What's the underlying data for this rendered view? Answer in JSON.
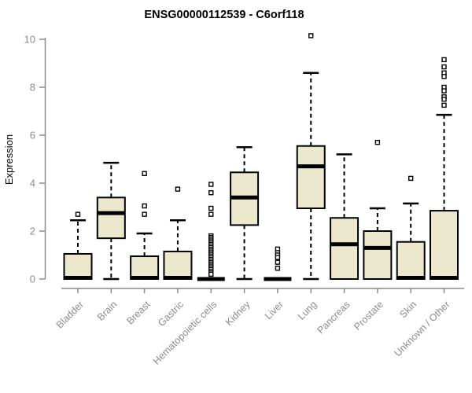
{
  "page": {
    "background": "#ffffff"
  },
  "colors": {
    "box_fill": "#ece8cd",
    "box_border": "#000000",
    "median": "#000000",
    "whisker": "#000000",
    "outlier_fill": "#ffffff",
    "outlier_border": "#000000",
    "axis": "#8c8c8c",
    "tick_text": "#8c8c8c",
    "title_text": "#000000"
  },
  "chart_data": {
    "type": "boxplot",
    "title": "ENSG00000112539 - C6orf118",
    "xlabel": "",
    "ylabel": "Expression",
    "ylim": [
      0,
      10
    ],
    "yticks": [
      0,
      2,
      4,
      6,
      8,
      10
    ],
    "grid": false,
    "legend": false,
    "categories": [
      "Bladder",
      "Brain",
      "Breast",
      "Gastric",
      "Hematopoietic cells",
      "Kidney",
      "Liver",
      "Lung",
      "Pancreas",
      "Prostate",
      "Skin",
      "Unknown / Other"
    ],
    "series": [
      {
        "name": "Bladder",
        "min": 0,
        "q1": 0,
        "median": 0.05,
        "q3": 1.05,
        "max": 2.45,
        "outliers": [
          2.7
        ]
      },
      {
        "name": "Brain",
        "min": 0,
        "q1": 1.7,
        "median": 2.75,
        "q3": 3.4,
        "max": 4.85,
        "outliers": []
      },
      {
        "name": "Breast",
        "min": 0,
        "q1": 0,
        "median": 0.05,
        "q3": 0.95,
        "max": 1.9,
        "outliers": [
          4.4,
          3.05,
          2.7
        ]
      },
      {
        "name": "Gastric",
        "min": 0,
        "q1": 0,
        "median": 0.05,
        "q3": 1.15,
        "max": 2.45,
        "outliers": [
          3.75
        ]
      },
      {
        "name": "Hematopoietic cells",
        "min": 0,
        "q1": 0,
        "median": 0,
        "q3": 0,
        "max": 0,
        "outliers": [
          3.95,
          3.6,
          2.95,
          2.7,
          1.8,
          1.73,
          1.66,
          1.59,
          1.52,
          1.45,
          1.38,
          1.31,
          1.24,
          1.17,
          1.1,
          1.03,
          0.96,
          0.89,
          0.82,
          0.75,
          0.68,
          0.61,
          0.54,
          0.47,
          0.4,
          0.33,
          0.26,
          0.2
        ]
      },
      {
        "name": "Kidney",
        "min": 0,
        "q1": 2.25,
        "median": 3.4,
        "q3": 4.45,
        "max": 5.5,
        "outliers": []
      },
      {
        "name": "Liver",
        "min": 0,
        "q1": 0,
        "median": 0,
        "q3": 0,
        "max": 0,
        "outliers": [
          1.25,
          1.1,
          1.0,
          0.9,
          0.7,
          0.45
        ]
      },
      {
        "name": "Lung",
        "min": 0,
        "q1": 2.95,
        "median": 4.7,
        "q3": 5.55,
        "max": 8.6,
        "outliers": [
          10.15
        ]
      },
      {
        "name": "Pancreas",
        "min": 0,
        "q1": 0,
        "median": 1.45,
        "q3": 2.55,
        "max": 5.2,
        "outliers": []
      },
      {
        "name": "Prostate",
        "min": 0,
        "q1": 0,
        "median": 1.3,
        "q3": 2.0,
        "max": 2.95,
        "outliers": [
          5.7
        ]
      },
      {
        "name": "Skin",
        "min": 0,
        "q1": 0,
        "median": 0.05,
        "q3": 1.55,
        "max": 3.15,
        "outliers": [
          4.2
        ]
      },
      {
        "name": "Unknown / Other",
        "min": 0,
        "q1": 0,
        "median": 0.05,
        "q3": 2.85,
        "max": 6.85,
        "outliers": [
          9.15,
          8.85,
          8.6,
          8.45,
          8.0,
          7.85,
          7.6,
          7.5,
          7.25
        ]
      }
    ]
  }
}
